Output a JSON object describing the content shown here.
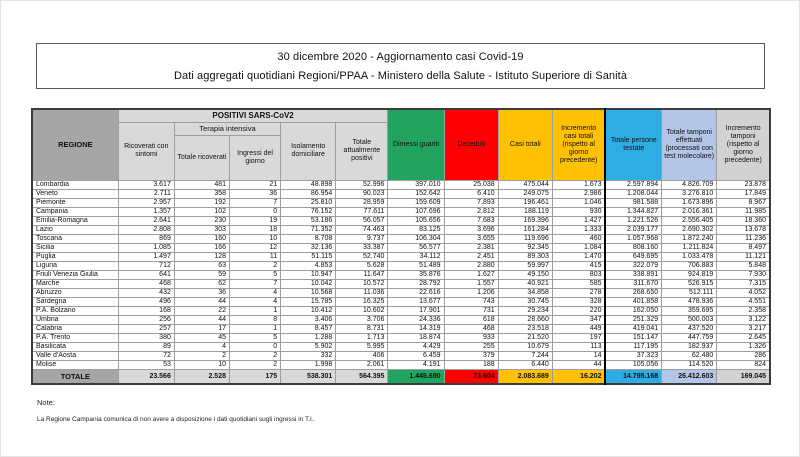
{
  "title": {
    "line1": "30 dicembre 2020 - Aggiornamento casi Covid-19",
    "line2": "Dati aggregati quotidiani Regioni/PPAA - Ministero della Salute - Istituto Superiore di Sanità"
  },
  "table": {
    "header": {
      "regione": "REGIONE",
      "positivi_group": "POSITIVI SARS-CoV2",
      "terapia_group": "Terapia intensiva",
      "cols": [
        "Ricoverati con sintomi",
        "Totale ricoverati",
        "Ingressi del giorno",
        "Isolamento domiciliare",
        "Totale attualmente positivi",
        "Dimessi guariti",
        "Deceduti",
        "Casi totali",
        "Incremento casi totali (rispetto al giorno precedente)",
        "Totale persone testate",
        "Totale tamponi effettuati (processati con test molecolare)",
        "Incremento tamponi (rispetto al giorno precedente)"
      ]
    },
    "rows": [
      {
        "regione": "Lombardia",
        "values": [
          "3.617",
          "481",
          "21",
          "48.898",
          "52.996",
          "397.010",
          "25.038",
          "475.044",
          "1.673",
          "2.597.894",
          "4.826.709",
          "23.878"
        ]
      },
      {
        "regione": "Veneto",
        "values": [
          "2.711",
          "358",
          "36",
          "86.954",
          "90.023",
          "152.642",
          "6.410",
          "249.075",
          "2.986",
          "1.208.044",
          "3.276.810",
          "17.849"
        ]
      },
      {
        "regione": "Piemonte",
        "values": [
          "2.957",
          "192",
          "7",
          "25.810",
          "28.959",
          "159.609",
          "7.893",
          "196.461",
          "1.046",
          "981.588",
          "1.673.896",
          "8.967"
        ]
      },
      {
        "regione": "Campania",
        "values": [
          "1.357",
          "102",
          "0",
          "76.152",
          "77.611",
          "107.696",
          "2.812",
          "188.119",
          "930",
          "1.344.827",
          "2.016.361",
          "11.985"
        ]
      },
      {
        "regione": "Emilia-Romagna",
        "values": [
          "2.641",
          "230",
          "19",
          "53.186",
          "56.057",
          "105.656",
          "7.683",
          "169.396",
          "1.427",
          "1.221.526",
          "2.556.405",
          "18.360"
        ]
      },
      {
        "regione": "Lazio",
        "values": [
          "2.808",
          "303",
          "18",
          "71.352",
          "74.463",
          "83.125",
          "3.696",
          "161.284",
          "1.333",
          "2.039.177",
          "2.690.302",
          "13.678"
        ]
      },
      {
        "regione": "Toscana",
        "values": [
          "869",
          "160",
          "10",
          "8.708",
          "9.737",
          "106.304",
          "3.655",
          "119.696",
          "460",
          "1.057.968",
          "1.872.240",
          "11.236"
        ]
      },
      {
        "regione": "Sicilia",
        "values": [
          "1.085",
          "166",
          "12",
          "32.136",
          "33.387",
          "56.577",
          "2.381",
          "92.345",
          "1.084",
          "808.160",
          "1.211.824",
          "8.497"
        ]
      },
      {
        "regione": "Puglia",
        "values": [
          "1.497",
          "128",
          "11",
          "51.115",
          "52.740",
          "34.112",
          "2.451",
          "89.303",
          "1.470",
          "649.695",
          "1.033.478",
          "11.121"
        ]
      },
      {
        "regione": "Liguria",
        "values": [
          "712",
          "63",
          "2",
          "4.853",
          "5.628",
          "51.489",
          "2.880",
          "59.997",
          "415",
          "322.079",
          "706.883",
          "5.848"
        ]
      },
      {
        "regione": "Friuli Venezia Giulia",
        "values": [
          "641",
          "59",
          "5",
          "10.947",
          "11.647",
          "35.876",
          "1.627",
          "49.150",
          "803",
          "338.891",
          "924.819",
          "7.930"
        ]
      },
      {
        "regione": "Marche",
        "values": [
          "468",
          "62",
          "7",
          "10.042",
          "10.572",
          "28.792",
          "1.557",
          "40.921",
          "585",
          "311.670",
          "526.915",
          "7.315"
        ]
      },
      {
        "regione": "Abruzzo",
        "values": [
          "432",
          "36",
          "4",
          "10.568",
          "11.036",
          "22.616",
          "1.206",
          "34.858",
          "278",
          "268.650",
          "512.111",
          "4.052"
        ]
      },
      {
        "regione": "Sardegna",
        "values": [
          "496",
          "44",
          "4",
          "15.785",
          "16.325",
          "13.677",
          "743",
          "30.745",
          "328",
          "401.858",
          "478.936",
          "4.551"
        ]
      },
      {
        "regione": "P.A. Bolzano",
        "values": [
          "168",
          "22",
          "1",
          "10.412",
          "10.602",
          "17.901",
          "731",
          "29.234",
          "220",
          "162.050",
          "359.695",
          "2.358"
        ]
      },
      {
        "regione": "Umbria",
        "values": [
          "256",
          "44",
          "8",
          "3.406",
          "3.706",
          "24.336",
          "618",
          "28.660",
          "347",
          "251.329",
          "500.003",
          "3.122"
        ]
      },
      {
        "regione": "Calabria",
        "values": [
          "257",
          "17",
          "1",
          "8.457",
          "8.731",
          "14.319",
          "468",
          "23.518",
          "449",
          "419.041",
          "437.520",
          "3.217"
        ]
      },
      {
        "regione": "P.A. Trento",
        "values": [
          "380",
          "45",
          "5",
          "1.288",
          "1.713",
          "18.874",
          "933",
          "21.520",
          "197",
          "151.147",
          "447.759",
          "2.645"
        ]
      },
      {
        "regione": "Basilicata",
        "values": [
          "89",
          "4",
          "0",
          "5.902",
          "5.995",
          "4.429",
          "255",
          "10.679",
          "113",
          "117.195",
          "182.937",
          "1.326"
        ]
      },
      {
        "regione": "Valle d'Aosta",
        "values": [
          "72",
          "2",
          "2",
          "332",
          "406",
          "6.459",
          "379",
          "7.244",
          "14",
          "37.323",
          "62.480",
          "286"
        ]
      },
      {
        "regione": "Molise",
        "values": [
          "53",
          "10",
          "2",
          "1.998",
          "2.061",
          "4.191",
          "188",
          "6.440",
          "44",
          "105.056",
          "114.520",
          "824"
        ]
      }
    ],
    "totale": {
      "label": "TOTALE",
      "values": [
        "23.566",
        "2.528",
        "175",
        "538.301",
        "564.395",
        "1.445.690",
        "73.604",
        "2.083.689",
        "16.202",
        "14.795.168",
        "26.412.603",
        "169.045"
      ]
    }
  },
  "notes": {
    "heading": "Note:",
    "line1": "La Regione Campania comunica di non avere a disposizione i dati quotidiani sugli ingressi in T.I.."
  },
  "colors": {
    "header_dark_gray": "#a6a6a6",
    "header_light_gray": "#d9d9d9",
    "green": "#21a45f",
    "red": "#fe0000",
    "amber": "#ffc104",
    "blue": "#2fade3",
    "periwinkle": "#b4c6e7",
    "light_gray_col": "#d2d2d2"
  }
}
